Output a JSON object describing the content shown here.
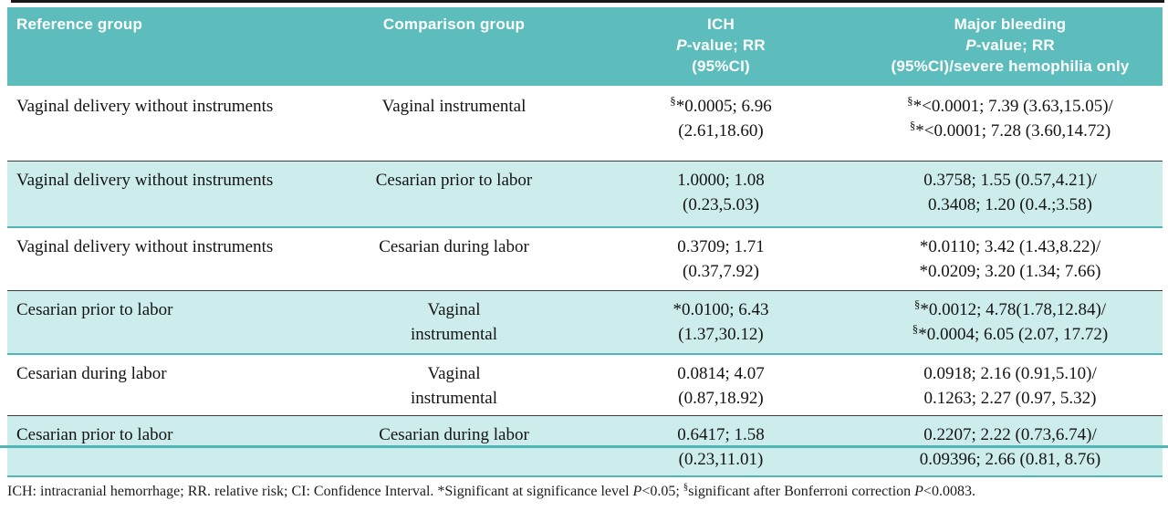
{
  "table": {
    "header": {
      "reference": "Reference group",
      "comparison": "Comparison group",
      "ich": {
        "title": "ICH",
        "p": "P",
        "p_rest": "-value; RR",
        "ci": "(95%CI)"
      },
      "major": {
        "title": "Major bleeding",
        "p": "P",
        "p_rest": "-value; RR",
        "ci": "(95%CI)/severe hemophilia only"
      }
    },
    "rows": [
      {
        "ref": "Vaginal delivery without instruments",
        "comp1": "Vaginal instrumental",
        "comp2": "",
        "ich": {
          "l1s": "§",
          "l1": "*0.0005; 6.96",
          "l2s": "",
          "l2": "(2.61,18.60)"
        },
        "mb": {
          "l1s": "§",
          "l1": "*<0.0001; 7.39 (3.63,15.05)/",
          "l2s": "§",
          "l2": "*<0.0001; 7.28 (3.60,14.72)"
        }
      },
      {
        "ref": "Vaginal delivery without instruments",
        "comp1": "Cesarian prior to labor",
        "comp2": "",
        "ich": {
          "l1s": "",
          "l1": "1.0000; 1.08",
          "l2s": "",
          "l2": "(0.23,5.03)"
        },
        "mb": {
          "l1s": "",
          "l1": "0.3758; 1.55 (0.57,4.21)/",
          "l2s": "",
          "l2": "0.3408; 1.20 (0.4.;3.58)"
        }
      },
      {
        "ref": "Vaginal delivery without instruments",
        "comp1": "Cesarian during labor",
        "comp2": "",
        "ich": {
          "l1s": "",
          "l1": "0.3709; 1.71",
          "l2s": "",
          "l2": "(0.37,7.92)"
        },
        "mb": {
          "l1s": "",
          "l1": "*0.0110; 3.42 (1.43,8.22)/",
          "l2s": "",
          "l2": "*0.0209; 3.20 (1.34; 7.66)"
        }
      },
      {
        "ref": "Cesarian prior to labor",
        "comp1": "Vaginal",
        "comp2": "instrumental",
        "ich": {
          "l1s": "",
          "l1": "*0.0100; 6.43",
          "l2s": "",
          "l2": "(1.37,30.12)"
        },
        "mb": {
          "l1s": "§",
          "l1": "*0.0012; 4.78(1.78,12.84)/",
          "l2s": "§",
          "l2": "*0.0004; 6.05 (2.07, 17.72)"
        }
      },
      {
        "ref": "Cesarian during labor",
        "comp1": "Vaginal",
        "comp2": "instrumental",
        "ich": {
          "l1s": "",
          "l1": "0.0814; 4.07",
          "l2s": "",
          "l2": "(0.87,18.92)"
        },
        "mb": {
          "l1s": "",
          "l1": "0.0918; 2.16 (0.91,5.10)/",
          "l2s": "",
          "l2": "0.1263; 2.27 (0.97, 5.32)"
        }
      },
      {
        "ref": "Cesarian prior to labor",
        "comp1": "Cesarian during labor",
        "comp2": "",
        "ich": {
          "l1s": "",
          "l1": "0.6417; 1.58",
          "l2s": "",
          "l2": "(0.23,11.01)"
        },
        "mb": {
          "l1s": "",
          "l1": "0.2207; 2.22 (0.73,6.74)/",
          "l2s": "",
          "l2": "0.09396; 2.66 (0.81, 8.76)"
        }
      }
    ]
  },
  "footnote": {
    "t1": "ICH: intracranial hemorrhage; RR. relative risk; CI: Confidence Interval. *Significant at significance level ",
    "p1": "P",
    "t2": "<0.05; ",
    "sup": "§",
    "t3": "significant after Bonferroni correction ",
    "p2": "P",
    "t4": "<0.0083."
  },
  "colors": {
    "header_teal": "#5dbdbd",
    "row_cyan": "#cdecec",
    "separator_teal": "#4fb5b6",
    "top_rule_black": "#181818"
  }
}
